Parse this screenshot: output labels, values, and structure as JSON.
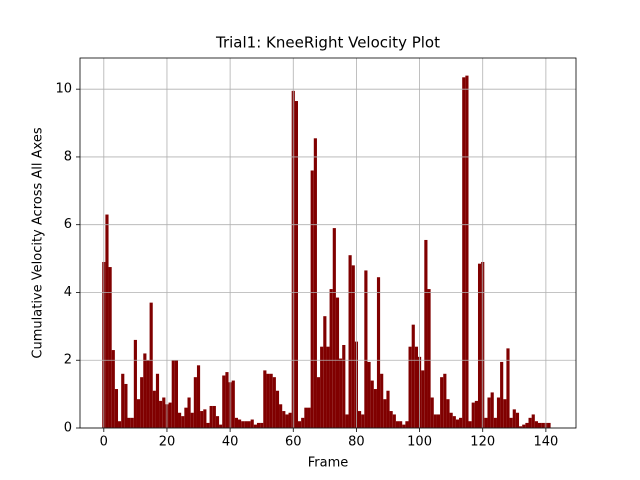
{
  "chart_data": {
    "type": "bar",
    "title": "Trial1: KneeRight Velocity Plot",
    "x_label": "Frame",
    "y_label": "Cumulative Velocity Across All Axes",
    "x": [
      0,
      1,
      2,
      3,
      4,
      5,
      6,
      7,
      8,
      9,
      10,
      11,
      12,
      13,
      14,
      15,
      16,
      17,
      18,
      19,
      20,
      21,
      22,
      23,
      24,
      25,
      26,
      27,
      28,
      29,
      30,
      31,
      32,
      33,
      34,
      35,
      36,
      37,
      38,
      39,
      40,
      41,
      42,
      43,
      44,
      45,
      46,
      47,
      48,
      49,
      50,
      51,
      52,
      53,
      54,
      55,
      56,
      57,
      58,
      59,
      60,
      61,
      62,
      63,
      64,
      65,
      66,
      67,
      68,
      69,
      70,
      71,
      72,
      73,
      74,
      75,
      76,
      77,
      78,
      79,
      80,
      81,
      82,
      83,
      84,
      85,
      86,
      87,
      88,
      89,
      90,
      91,
      92,
      93,
      94,
      95,
      96,
      97,
      98,
      99,
      100,
      101,
      102,
      103,
      104,
      105,
      106,
      107,
      108,
      109,
      110,
      111,
      112,
      113,
      114,
      115,
      116,
      117,
      118,
      119,
      120,
      121,
      122,
      123,
      124,
      125,
      126,
      127,
      128,
      129,
      130,
      131,
      132,
      133,
      134,
      135,
      136,
      137,
      138,
      139,
      140,
      141
    ],
    "values": [
      4.9,
      6.3,
      4.75,
      2.3,
      1.15,
      0.2,
      1.6,
      1.3,
      0.3,
      0.3,
      2.6,
      0.85,
      1.5,
      2.2,
      2.0,
      3.7,
      1.1,
      1.6,
      0.8,
      0.9,
      0.7,
      0.75,
      2.0,
      2.0,
      0.45,
      0.35,
      0.6,
      0.9,
      0.45,
      1.5,
      1.85,
      0.5,
      0.55,
      0.15,
      0.65,
      0.65,
      0.35,
      0.1,
      1.55,
      1.65,
      1.35,
      1.4,
      0.3,
      0.25,
      0.2,
      0.2,
      0.2,
      0.25,
      0.1,
      0.15,
      0.15,
      1.7,
      1.6,
      1.6,
      1.5,
      1.1,
      0.7,
      0.5,
      0.4,
      0.45,
      9.95,
      9.65,
      0.2,
      0.3,
      0.6,
      0.6,
      7.6,
      8.55,
      1.5,
      2.4,
      3.3,
      2.4,
      4.1,
      5.9,
      3.85,
      2.05,
      2.45,
      0.4,
      5.1,
      4.8,
      2.55,
      0.5,
      0.4,
      4.65,
      1.95,
      1.4,
      1.15,
      4.45,
      1.6,
      0.85,
      1.1,
      0.5,
      0.4,
      0.2,
      0.2,
      0.1,
      0.2,
      2.4,
      3.05,
      2.4,
      2.1,
      1.7,
      5.55,
      4.1,
      0.9,
      0.4,
      0.4,
      1.5,
      1.6,
      0.85,
      0.45,
      0.35,
      0.25,
      0.3,
      10.35,
      10.4,
      0.2,
      0.75,
      0.8,
      4.85,
      4.9,
      0.3,
      0.9,
      1.05,
      0.3,
      0.9,
      1.95,
      0.85,
      2.35,
      0.3,
      0.55,
      0.45,
      0.05,
      0.1,
      0.15,
      0.3,
      0.4,
      0.2,
      0.15,
      0.15,
      0.15,
      0.15
    ],
    "color": "#800000",
    "xlim": [
      -7.54,
      149.54
    ],
    "xticks": [
      0,
      20,
      40,
      60,
      80,
      100,
      120,
      140
    ],
    "ylim": [
      0,
      10.92
    ],
    "yticks": [
      0,
      2,
      4,
      6,
      8,
      10
    ],
    "grid": true
  }
}
